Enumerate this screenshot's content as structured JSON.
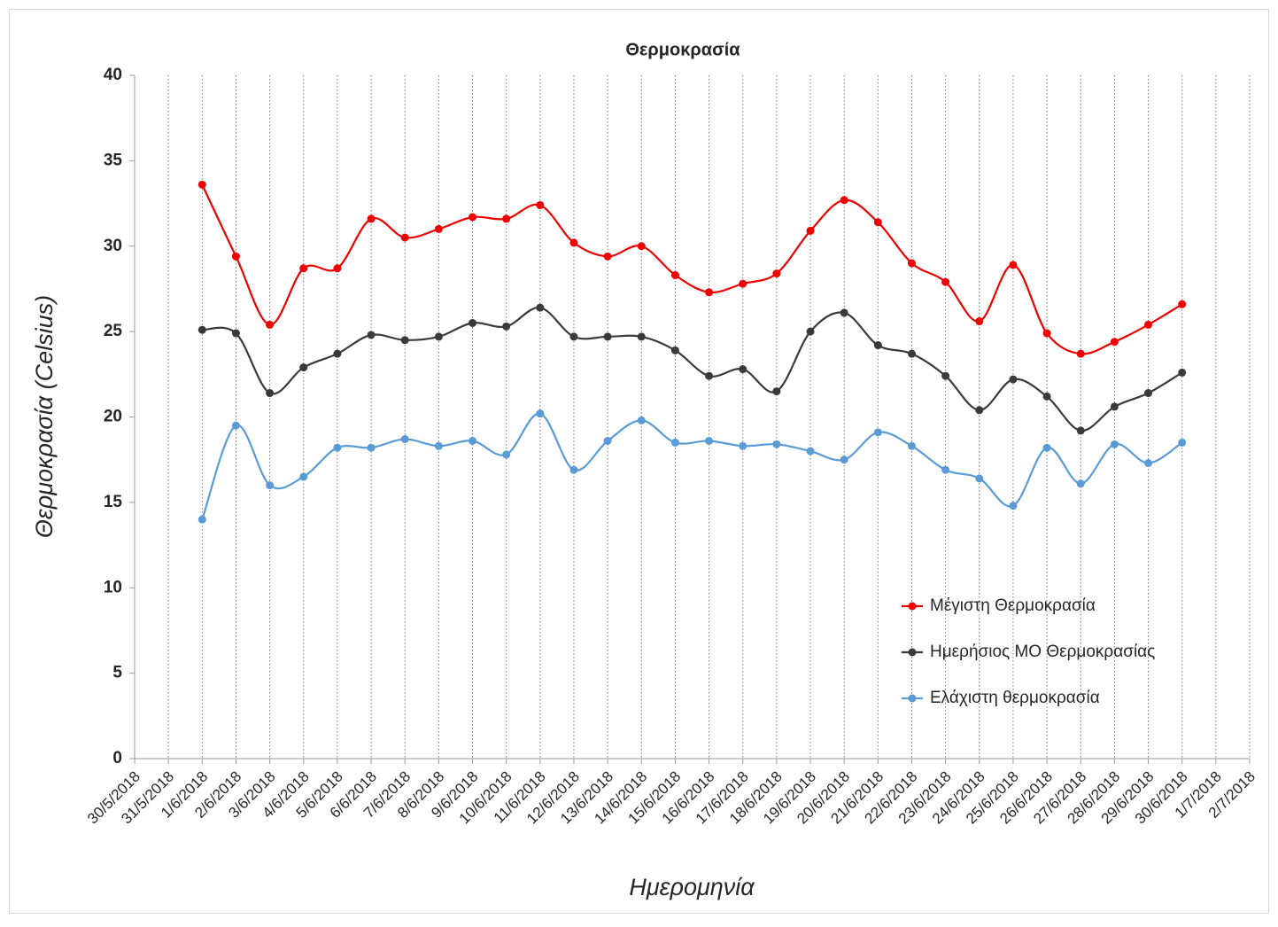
{
  "chart_data": {
    "type": "line",
    "title": "Θερμοκρασία",
    "x_label": "Ημερομηνία",
    "y_label": "Θερμοκρασία (Celsius)",
    "categories": [
      "30/5/2018",
      "31/5/2018",
      "1/6/2018",
      "2/6/2018",
      "3/6/2018",
      "4/6/2018",
      "5/6/2018",
      "6/6/2018",
      "7/6/2018",
      "8/6/2018",
      "9/6/2018",
      "10/6/2018",
      "11/6/2018",
      "12/6/2018",
      "13/6/2018",
      "14/6/2018",
      "15/6/2018",
      "16/6/2018",
      "17/6/2018",
      "18/6/2018",
      "19/6/2018",
      "20/6/2018",
      "21/6/2018",
      "22/6/2018",
      "23/6/2018",
      "24/6/2018",
      "25/6/2018",
      "26/6/2018",
      "27/6/2018",
      "28/6/2018",
      "29/6/2018",
      "30/6/2018",
      "1/7/2018",
      "2/7/2018"
    ],
    "series": [
      {
        "name": "Μέγιστη Θερμοκρασία",
        "color": "#ee0000",
        "values": [
          null,
          null,
          33.6,
          29.4,
          25.4,
          28.7,
          28.7,
          31.6,
          30.5,
          31.0,
          31.7,
          31.6,
          32.4,
          30.2,
          29.4,
          30.0,
          28.3,
          27.3,
          27.8,
          28.4,
          30.9,
          32.7,
          31.4,
          29.0,
          27.9,
          25.6,
          28.9,
          24.9,
          23.7,
          24.4,
          25.4,
          26.6,
          null,
          null
        ]
      },
      {
        "name": "Ημερήσιος ΜΟ Θερμοκρασίας",
        "color": "#3a3a3a",
        "values": [
          null,
          null,
          25.1,
          24.9,
          21.4,
          22.9,
          23.7,
          24.8,
          24.5,
          24.7,
          25.5,
          25.3,
          26.4,
          24.7,
          24.7,
          24.7,
          23.9,
          22.4,
          22.8,
          21.5,
          25.0,
          26.1,
          24.2,
          23.7,
          22.4,
          20.4,
          22.2,
          21.2,
          19.2,
          20.6,
          21.4,
          22.6,
          null,
          null
        ]
      },
      {
        "name": "Ελάχιστη θερμοκρασία",
        "color": "#5b9bd5",
        "values": [
          null,
          null,
          14.0,
          19.5,
          16.0,
          16.5,
          18.2,
          18.2,
          18.7,
          18.3,
          18.6,
          17.8,
          20.2,
          16.9,
          18.6,
          19.8,
          18.5,
          18.6,
          18.3,
          18.4,
          18.0,
          17.5,
          19.1,
          18.3,
          16.9,
          16.4,
          14.8,
          18.2,
          16.1,
          18.4,
          17.3,
          18.5,
          null,
          null
        ]
      }
    ],
    "ylim": [
      0,
      40
    ],
    "yticks": [
      0,
      5,
      10,
      15,
      20,
      25,
      30,
      35,
      40
    ],
    "x_grid": true,
    "smooth": true,
    "legend": "right"
  }
}
